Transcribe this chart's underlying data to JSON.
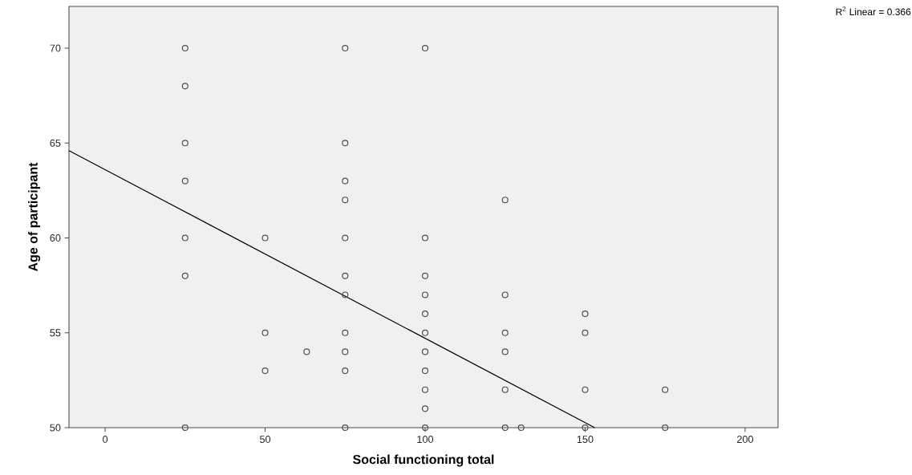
{
  "chart_data": {
    "type": "scatter",
    "xlabel": "Social functioning total",
    "ylabel": "Age of participant",
    "annotations": [
      "R$^{2}$ Linear = 0.366"
    ],
    "xlim": [
      -11.3,
      210.3
    ],
    "ylim": [
      50,
      72.2
    ],
    "xticks": [
      0,
      50,
      100,
      150,
      200
    ],
    "yticks": [
      50,
      55,
      60,
      65,
      70
    ],
    "line_style": "solid",
    "grid": false,
    "series": [
      {
        "marker": "circle",
        "color": "#505050",
        "x": [
          25,
          25,
          25,
          25,
          25,
          25,
          25,
          50,
          50,
          50,
          63,
          75,
          75,
          75,
          75,
          75,
          75,
          75,
          75,
          75,
          75,
          75,
          100,
          100,
          100,
          100,
          100,
          100,
          100,
          100,
          100,
          100,
          100,
          125,
          125,
          125,
          125,
          125,
          125,
          130,
          150,
          150,
          150,
          150,
          175,
          175
        ],
        "values": [
          70,
          68,
          65,
          63,
          60,
          58,
          50,
          60,
          55,
          53,
          54,
          70,
          65,
          63,
          62,
          60,
          58,
          57,
          55,
          54,
          53,
          50,
          70,
          60,
          58,
          57,
          56,
          55,
          54,
          53,
          52,
          51,
          50,
          62,
          57,
          55,
          54,
          52,
          50,
          50,
          56,
          55,
          52,
          50,
          52,
          50
        ]
      },
      {
        "type": "line",
        "marker": "none",
        "color": "#000000",
        "x": [
          -11.3,
          153
        ],
        "values": [
          64.6,
          50
        ]
      }
    ]
  }
}
